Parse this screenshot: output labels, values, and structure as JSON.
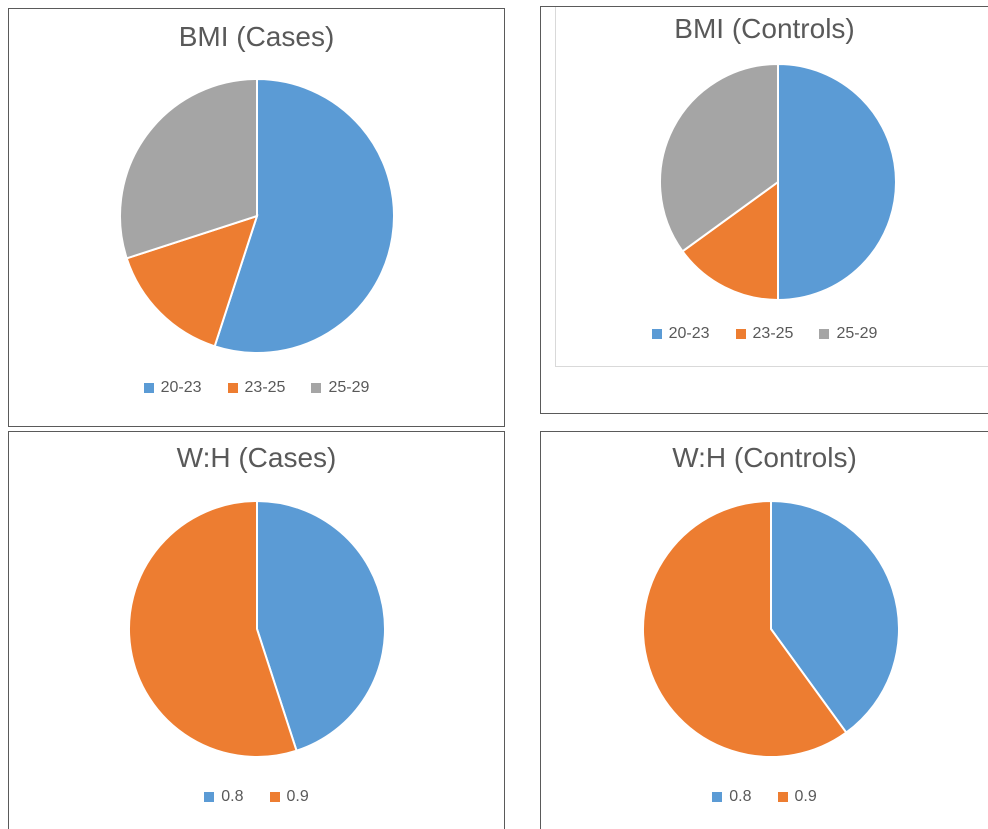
{
  "colors": {
    "s0": "#5b9bd5",
    "s1": "#ed7d31",
    "s2": "#a5a5a5"
  },
  "chart_data": [
    {
      "type": "pie",
      "title": "BMI (Cases)",
      "categories": [
        "20-23",
        "23-25",
        "25-29"
      ],
      "values": [
        55,
        15,
        30
      ],
      "legend": "bottom"
    },
    {
      "type": "pie",
      "title": "BMI (Controls)",
      "categories": [
        "20-23",
        "23-25",
        "25-29"
      ],
      "values": [
        50,
        15,
        35
      ],
      "legend": "bottom"
    },
    {
      "type": "pie",
      "title": "W:H (Cases)",
      "categories": [
        "0.8",
        "0.9"
      ],
      "values": [
        45,
        55
      ],
      "legend": "bottom"
    },
    {
      "type": "pie",
      "title": "W:H (Controls)",
      "categories": [
        "0.8",
        "0.9"
      ],
      "values": [
        40,
        60
      ],
      "legend": "bottom"
    }
  ]
}
